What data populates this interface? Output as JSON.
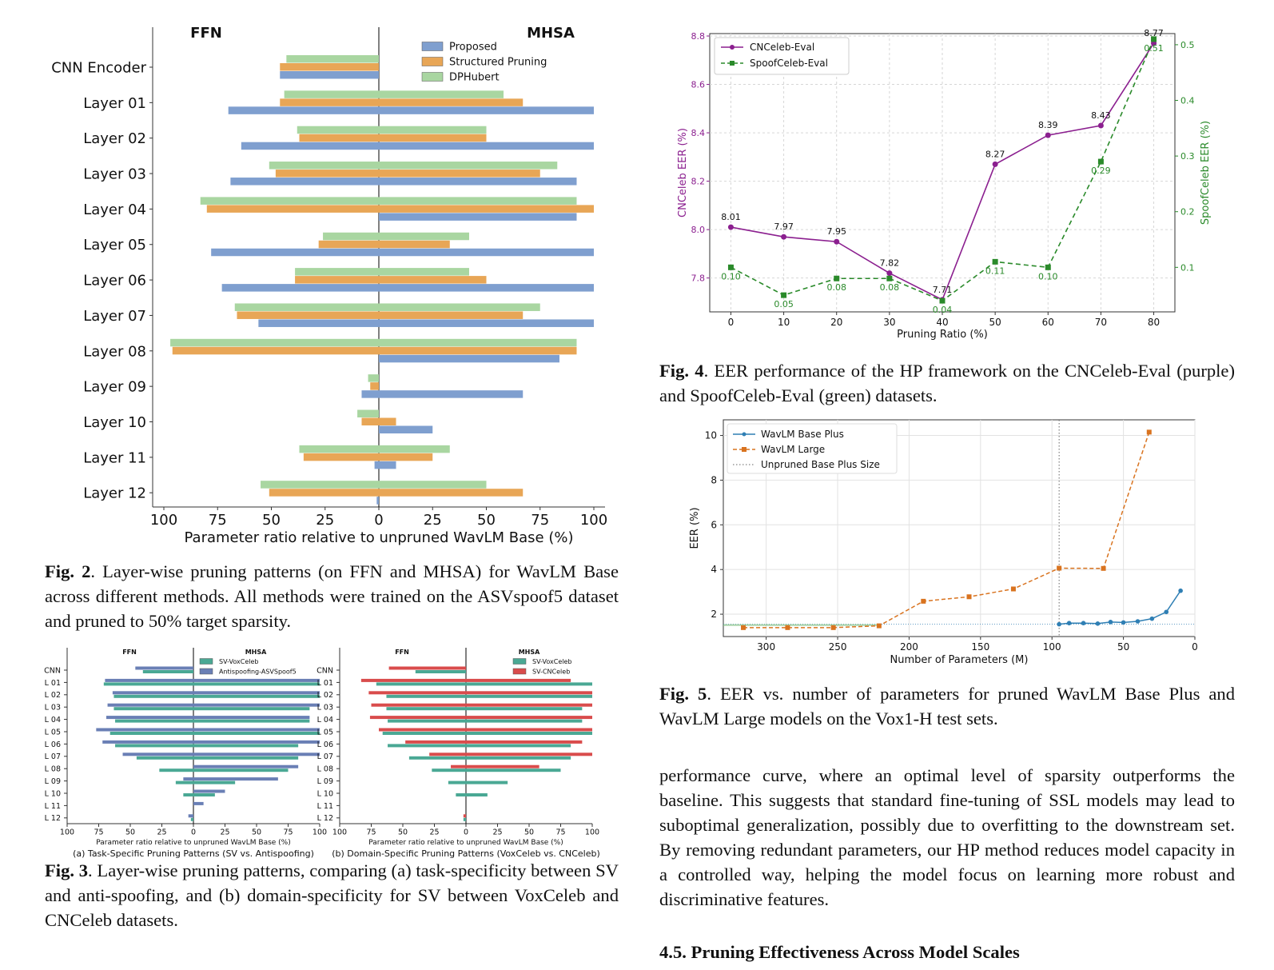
{
  "colors": {
    "proposed": "#7f9fcf",
    "structured": "#e8a656",
    "dphubert": "#a9d6a1",
    "sv_vox": "#4aa894",
    "antispoof": "#6a7fb5",
    "sv_cn": "#d94c4c",
    "cnceleb": "#8b1f8f",
    "spoofceleb": "#2a8a2a",
    "base_plus": "#2f7fb4",
    "large": "#d9731f"
  },
  "fig2": {
    "caption_label": "Fig. 2",
    "caption_text": ". Layer-wise pruning patterns (on FFN and MHSA) for WavLM Base across different methods. All methods were trained on the ASVspoof5 dataset and pruned to 50% target sparsity.",
    "chart_data": {
      "type": "bar",
      "orientation": "horizontal-diverging",
      "left_title": "FFN",
      "right_title": "MHSA",
      "xlabel": "Parameter ratio relative to unpruned WavLM Base (%)",
      "xticks": [
        "100",
        "75",
        "50",
        "25",
        "0",
        "25",
        "50",
        "75",
        "100"
      ],
      "categories": [
        "CNN Encoder",
        "Layer 01",
        "Layer 02",
        "Layer 03",
        "Layer 04",
        "Layer 05",
        "Layer 06",
        "Layer 07",
        "Layer 08",
        "Layer 09",
        "Layer 10",
        "Layer 11",
        "Layer 12"
      ],
      "legend": [
        "Proposed",
        "Structured Pruning",
        "DPHubert"
      ],
      "series": [
        {
          "name": "Proposed",
          "ffn": [
            46,
            70,
            64,
            69,
            0,
            78,
            73,
            56,
            0,
            8,
            0,
            2,
            1
          ],
          "mhsa": [
            0,
            100,
            100,
            92,
            92,
            100,
            100,
            100,
            84,
            67,
            25,
            8,
            0
          ]
        },
        {
          "name": "Structured Pruning",
          "ffn": [
            46,
            46,
            37,
            48,
            80,
            28,
            39,
            66,
            96,
            4,
            8,
            35,
            51
          ],
          "mhsa": [
            0,
            67,
            50,
            75,
            100,
            33,
            50,
            67,
            92,
            0,
            8,
            25,
            67
          ]
        },
        {
          "name": "DPHubert",
          "ffn": [
            43,
            44,
            38,
            51,
            83,
            26,
            39,
            67,
            97,
            5,
            10,
            37,
            55
          ],
          "mhsa": [
            0,
            58,
            50,
            83,
            92,
            42,
            42,
            75,
            92,
            0,
            0,
            33,
            50
          ]
        }
      ]
    }
  },
  "fig3": {
    "caption_label": "Fig. 3",
    "caption_text": ". Layer-wise pruning patterns, comparing (a) task-specificity between SV and anti-spoofing, and (b) domain-specificity for SV between VoxCeleb and CNCeleb datasets.",
    "chart_data": [
      {
        "type": "bar",
        "orientation": "horizontal-diverging",
        "left_title": "FFN",
        "right_title": "MHSA",
        "subcaption": "(a) Task-Specific Pruning Patterns (SV vs. Antispoofing)",
        "xlabel": "Parameter ratio relative to unpruned WavLM Base (%)",
        "xticks": [
          "100",
          "75",
          "50",
          "25",
          "0",
          "25",
          "50",
          "75",
          "100"
        ],
        "categories": [
          "CNN",
          "L 01",
          "L 02",
          "L 03",
          "L 04",
          "L 05",
          "L 06",
          "L 07",
          "L 08",
          "L 09",
          "L 10",
          "L 11",
          "L 12"
        ],
        "series": [
          {
            "name": "SV-VoxCeleb",
            "ffn": [
              40,
              71,
              63,
              63,
              62,
              66,
              62,
              45,
              27,
              14,
              8,
              0,
              2
            ],
            "mhsa": [
              0,
              100,
              100,
              92,
              92,
              100,
              83,
              83,
              75,
              33,
              17,
              0,
              0
            ]
          },
          {
            "name": "Antispoofing-ASVSpoof5",
            "ffn": [
              46,
              70,
              64,
              68,
              69,
              77,
              72,
              56,
              0,
              8,
              0,
              0,
              4
            ],
            "mhsa": [
              0,
              100,
              100,
              100,
              92,
              100,
              100,
              100,
              83,
              67,
              25,
              8,
              0
            ]
          }
        ]
      },
      {
        "type": "bar",
        "orientation": "horizontal-diverging",
        "left_title": "FFN",
        "right_title": "MHSA",
        "subcaption": "(b) Domain-Specific Pruning Patterns (VoxCeleb vs. CNCeleb)",
        "xlabel": "Parameter ratio relative to unpruned WavLM Base (%)",
        "xticks": [
          "100",
          "75",
          "50",
          "25",
          "0",
          "25",
          "50",
          "75",
          "100"
        ],
        "categories": [
          "CNN",
          "L 01",
          "L 02",
          "L 03",
          "L 04",
          "L 05",
          "L 06",
          "L 07",
          "L 08",
          "L 09",
          "L 10",
          "L 11",
          "L 12"
        ],
        "series": [
          {
            "name": "SV-VoxCeleb",
            "ffn": [
              40,
              71,
              63,
              63,
              62,
              66,
              62,
              45,
              27,
              14,
              8,
              0,
              2
            ],
            "mhsa": [
              0,
              100,
              100,
              92,
              92,
              100,
              83,
              83,
              75,
              33,
              17,
              0,
              0
            ]
          },
          {
            "name": "SV-CNCeleb",
            "ffn": [
              61,
              83,
              77,
              75,
              76,
              69,
              48,
              29,
              12,
              0,
              0,
              0,
              2
            ],
            "mhsa": [
              0,
              83,
              100,
              100,
              100,
              100,
              92,
              100,
              58,
              0,
              0,
              0,
              0
            ]
          }
        ]
      }
    ]
  },
  "fig4": {
    "caption_label": "Fig. 4",
    "caption_text": ". EER performance of the HP framework on the CNCeleb-Eval (purple) and SpoofCeleb-Eval (green) datasets.",
    "chart_data": {
      "type": "line",
      "xlabel": "Pruning Ratio (%)",
      "ylabel": "CNCeleb EER (%)",
      "y2label": "SpoofCeleb EER (%)",
      "x": [
        0,
        10,
        20,
        30,
        40,
        50,
        60,
        70,
        80
      ],
      "xlim": [
        -4,
        84
      ],
      "ylim": [
        7.66,
        8.81
      ],
      "y2lim": [
        0.02,
        0.52
      ],
      "yticks": [
        7.8,
        8.0,
        8.2,
        8.4,
        8.6,
        8.8
      ],
      "y2ticks": [
        0.1,
        0.2,
        0.3,
        0.4,
        0.5
      ],
      "legend_position": "top-left",
      "series": [
        {
          "name": "CNCeleb-Eval",
          "axis": "left",
          "values": [
            8.01,
            7.97,
            7.95,
            7.82,
            7.71,
            8.27,
            8.39,
            8.43,
            8.77
          ],
          "labels": [
            "8.01",
            "7.97",
            "7.95",
            "7.82",
            "7.71",
            "8.27",
            "8.39",
            "8.43",
            "8.77"
          ]
        },
        {
          "name": "SpoofCeleb-Eval",
          "axis": "right",
          "values": [
            0.1,
            0.05,
            0.08,
            0.08,
            0.04,
            0.11,
            0.1,
            0.29,
            0.51
          ],
          "labels": [
            "0.10",
            "0.05",
            "0.08",
            "0.08",
            "0.04",
            "0.11",
            "0.10",
            "0.29",
            "0.51"
          ]
        }
      ]
    }
  },
  "fig5": {
    "caption_label": "Fig. 5",
    "caption_text": ". EER vs. number of parameters for pruned WavLM Base Plus and WavLM Large models on the Vox1-H test sets.",
    "chart_data": {
      "type": "line",
      "xlabel": "Number of Parameters (M)",
      "ylabel": "EER (%)",
      "xlim": [
        330,
        0
      ],
      "ylim": [
        1.0,
        10.7
      ],
      "xticks": [
        300,
        250,
        200,
        150,
        100,
        50,
        0
      ],
      "yticks": [
        2,
        4,
        6,
        8,
        10
      ],
      "legend_position": "top-left",
      "reference_line": {
        "name": "Unpruned Base Plus Size",
        "x": 95
      },
      "series": [
        {
          "name": "WavLM Base Plus",
          "x": [
            95,
            88,
            78,
            68,
            59,
            50,
            40,
            30,
            20,
            10
          ],
          "values": [
            1.55,
            1.6,
            1.6,
            1.58,
            1.65,
            1.63,
            1.68,
            1.8,
            2.1,
            3.05
          ]
        },
        {
          "name": "WavLM Large",
          "x": [
            316,
            285,
            253,
            221,
            190,
            158,
            127,
            95,
            64,
            32
          ],
          "values": [
            1.4,
            1.4,
            1.4,
            1.48,
            2.58,
            2.78,
            3.13,
            4.06,
            4.05,
            10.15
          ]
        }
      ]
    }
  },
  "body": {
    "paragraph": "performance curve, where an optimal level of sparsity outperforms the baseline. This suggests that standard fine-tuning of SSL models may lead to suboptimal generalization, possibly due to overfitting to the downstream set. By removing redundant parameters, our HP method reduces model capacity in a controlled way, helping the model focus on learning more robust and discriminative features.",
    "section_heading": "4.5. Pruning Effectiveness Across Model Scales"
  }
}
